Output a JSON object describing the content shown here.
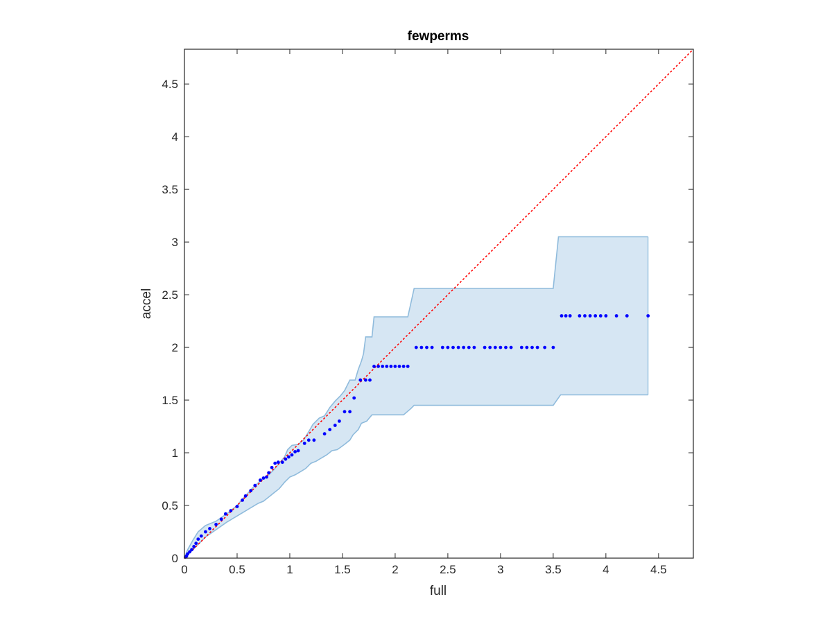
{
  "chart_data": {
    "type": "scatter",
    "title": "fewperms",
    "xlabel": "full",
    "ylabel": "accel",
    "xlim": [
      0,
      4.83
    ],
    "ylim": [
      0,
      4.83
    ],
    "xticks": [
      0,
      0.5,
      1,
      1.5,
      2,
      2.5,
      3,
      3.5,
      4,
      4.5
    ],
    "yticks": [
      0,
      0.5,
      1,
      1.5,
      2,
      2.5,
      3,
      3.5,
      4,
      4.5
    ],
    "xtick_labels": [
      "0",
      "0.5",
      "1",
      "1.5",
      "2",
      "2.5",
      "3",
      "3.5",
      "4",
      "4.5"
    ],
    "ytick_labels": [
      "0",
      "0.5",
      "1",
      "1.5",
      "2",
      "2.5",
      "3",
      "3.5",
      "4",
      "4.5"
    ],
    "grid": false,
    "box": true,
    "colors": {
      "band_fill": "#d6e6f3",
      "band_edge": "#8fbbdc",
      "points": "#0000ff",
      "diagonal": "#ff0000",
      "axes": "#262626"
    },
    "diagonal": {
      "style": "dotted",
      "from": [
        0,
        0
      ],
      "to": [
        4.83,
        4.83
      ]
    },
    "band": {
      "upper": [
        [
          0,
          0
        ],
        [
          0.03,
          0.08
        ],
        [
          0.08,
          0.17
        ],
        [
          0.13,
          0.25
        ],
        [
          0.2,
          0.31
        ],
        [
          0.3,
          0.35
        ],
        [
          0.4,
          0.42
        ],
        [
          0.5,
          0.5
        ],
        [
          0.55,
          0.56
        ],
        [
          0.65,
          0.67
        ],
        [
          0.75,
          0.76
        ],
        [
          0.8,
          0.79
        ],
        [
          0.85,
          0.84
        ],
        [
          0.9,
          0.9
        ],
        [
          0.95,
          0.96
        ],
        [
          0.98,
          1.03
        ],
        [
          1.02,
          1.07
        ],
        [
          1.08,
          1.08
        ],
        [
          1.13,
          1.12
        ],
        [
          1.18,
          1.2
        ],
        [
          1.22,
          1.27
        ],
        [
          1.28,
          1.33
        ],
        [
          1.33,
          1.35
        ],
        [
          1.38,
          1.43
        ],
        [
          1.43,
          1.49
        ],
        [
          1.48,
          1.54
        ],
        [
          1.52,
          1.59
        ],
        [
          1.57,
          1.69
        ],
        [
          1.62,
          1.69
        ],
        [
          1.65,
          1.79
        ],
        [
          1.68,
          1.87
        ],
        [
          1.7,
          1.94
        ],
        [
          1.72,
          2.1
        ],
        [
          1.78,
          2.1
        ],
        [
          1.8,
          2.29
        ],
        [
          2.12,
          2.29
        ],
        [
          2.18,
          2.56
        ],
        [
          3.5,
          2.56
        ],
        [
          3.55,
          3.05
        ],
        [
          4.4,
          3.05
        ]
      ],
      "lower": [
        [
          4.4,
          1.55
        ],
        [
          3.57,
          1.55
        ],
        [
          3.5,
          1.45
        ],
        [
          2.18,
          1.45
        ],
        [
          2.15,
          1.42
        ],
        [
          2.08,
          1.36
        ],
        [
          1.78,
          1.36
        ],
        [
          1.73,
          1.3
        ],
        [
          1.68,
          1.28
        ],
        [
          1.65,
          1.22
        ],
        [
          1.6,
          1.17
        ],
        [
          1.57,
          1.12
        ],
        [
          1.52,
          1.08
        ],
        [
          1.48,
          1.05
        ],
        [
          1.45,
          1.03
        ],
        [
          1.4,
          1.02
        ],
        [
          1.35,
          0.98
        ],
        [
          1.3,
          0.95
        ],
        [
          1.25,
          0.92
        ],
        [
          1.2,
          0.9
        ],
        [
          1.15,
          0.85
        ],
        [
          1.1,
          0.82
        ],
        [
          1.05,
          0.79
        ],
        [
          1.0,
          0.77
        ],
        [
          0.95,
          0.72
        ],
        [
          0.9,
          0.66
        ],
        [
          0.85,
          0.62
        ],
        [
          0.8,
          0.58
        ],
        [
          0.75,
          0.54
        ],
        [
          0.7,
          0.52
        ],
        [
          0.6,
          0.46
        ],
        [
          0.5,
          0.4
        ],
        [
          0.4,
          0.34
        ],
        [
          0.3,
          0.27
        ],
        [
          0.2,
          0.2
        ],
        [
          0.12,
          0.12
        ],
        [
          0.06,
          0.06
        ],
        [
          0,
          0
        ]
      ]
    },
    "series": [
      {
        "points": [
          [
            0.01,
            0.01
          ],
          [
            0.02,
            0.02
          ],
          [
            0.03,
            0.04
          ],
          [
            0.05,
            0.06
          ],
          [
            0.07,
            0.08
          ],
          [
            0.09,
            0.11
          ],
          [
            0.11,
            0.14
          ],
          [
            0.13,
            0.18
          ],
          [
            0.16,
            0.21
          ],
          [
            0.2,
            0.25
          ],
          [
            0.24,
            0.28
          ],
          [
            0.3,
            0.32
          ],
          [
            0.35,
            0.37
          ],
          [
            0.39,
            0.42
          ],
          [
            0.44,
            0.45
          ],
          [
            0.5,
            0.49
          ],
          [
            0.55,
            0.55
          ],
          [
            0.58,
            0.59
          ],
          [
            0.63,
            0.64
          ],
          [
            0.67,
            0.69
          ],
          [
            0.72,
            0.74
          ],
          [
            0.75,
            0.76
          ],
          [
            0.78,
            0.77
          ],
          [
            0.8,
            0.81
          ],
          [
            0.83,
            0.86
          ],
          [
            0.86,
            0.9
          ],
          [
            0.89,
            0.91
          ],
          [
            0.93,
            0.91
          ],
          [
            0.96,
            0.94
          ],
          [
            0.99,
            0.96
          ],
          [
            1.02,
            0.98
          ],
          [
            1.05,
            1.01
          ],
          [
            1.08,
            1.02
          ],
          [
            1.14,
            1.09
          ],
          [
            1.18,
            1.12
          ],
          [
            1.23,
            1.12
          ],
          [
            1.33,
            1.18
          ],
          [
            1.38,
            1.22
          ],
          [
            1.43,
            1.26
          ],
          [
            1.47,
            1.3
          ],
          [
            1.52,
            1.39
          ],
          [
            1.57,
            1.39
          ],
          [
            1.61,
            1.52
          ],
          [
            1.67,
            1.69
          ],
          [
            1.72,
            1.69
          ],
          [
            1.76,
            1.69
          ],
          [
            1.8,
            1.82
          ],
          [
            1.84,
            1.82
          ],
          [
            1.88,
            1.82
          ],
          [
            1.92,
            1.82
          ],
          [
            1.96,
            1.82
          ],
          [
            2.0,
            1.82
          ],
          [
            2.04,
            1.82
          ],
          [
            2.08,
            1.82
          ],
          [
            2.12,
            1.82
          ],
          [
            2.2,
            2.0
          ],
          [
            2.25,
            2.0
          ],
          [
            2.3,
            2.0
          ],
          [
            2.35,
            2.0
          ],
          [
            2.45,
            2.0
          ],
          [
            2.5,
            2.0
          ],
          [
            2.55,
            2.0
          ],
          [
            2.6,
            2.0
          ],
          [
            2.65,
            2.0
          ],
          [
            2.7,
            2.0
          ],
          [
            2.75,
            2.0
          ],
          [
            2.85,
            2.0
          ],
          [
            2.9,
            2.0
          ],
          [
            2.95,
            2.0
          ],
          [
            3.0,
            2.0
          ],
          [
            3.05,
            2.0
          ],
          [
            3.1,
            2.0
          ],
          [
            3.2,
            2.0
          ],
          [
            3.25,
            2.0
          ],
          [
            3.3,
            2.0
          ],
          [
            3.35,
            2.0
          ],
          [
            3.42,
            2.0
          ],
          [
            3.5,
            2.0
          ],
          [
            3.58,
            2.3
          ],
          [
            3.62,
            2.3
          ],
          [
            3.66,
            2.3
          ],
          [
            3.75,
            2.3
          ],
          [
            3.8,
            2.3
          ],
          [
            3.85,
            2.3
          ],
          [
            3.9,
            2.3
          ],
          [
            3.95,
            2.3
          ],
          [
            4.0,
            2.3
          ],
          [
            4.1,
            2.3
          ],
          [
            4.2,
            2.3
          ],
          [
            4.4,
            2.3
          ]
        ]
      }
    ]
  }
}
